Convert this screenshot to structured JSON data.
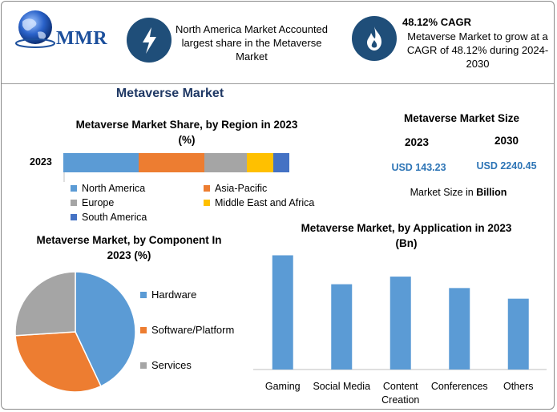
{
  "colors": {
    "blue": "#5b9bd5",
    "orange": "#ed7d31",
    "gray": "#a5a5a5",
    "yellow": "#ffc000",
    "darkblue": "#4472c4",
    "navy": "#1f4e79",
    "value_blue": "#2e75b6"
  },
  "logo": {
    "text": "MMR",
    "icon": "globe-icon"
  },
  "header": {
    "stat1": {
      "icon": "lightning-icon",
      "text": "North America Market Accounted largest share in the Metaverse Market"
    },
    "stat2": {
      "icon": "flame-icon",
      "title": "48.12% CAGR",
      "text": "Metaverse Market to grow at a CAGR of 48.12% during 2024-2030"
    }
  },
  "main_title": "Metaverse Market",
  "region_chart": {
    "title_line1": "Metaverse Market Share, by Region in 2023",
    "title_line2": "(%)",
    "row_label": "2023",
    "segments": [
      {
        "name": "North America",
        "value": 32,
        "color": "#5b9bd5"
      },
      {
        "name": "Asia-Pacific",
        "value": 28,
        "color": "#ed7d31"
      },
      {
        "name": "Europe",
        "value": 18,
        "color": "#a5a5a5"
      },
      {
        "name": "Middle East and Africa",
        "value": 11,
        "color": "#ffc000"
      },
      {
        "name": "South America",
        "value": 7,
        "color": "#4472c4"
      }
    ]
  },
  "market_size": {
    "title": "Metaverse Market Size",
    "year1": "2023",
    "year2": "2030",
    "value1": "USD 143.23",
    "value2": "USD 2240.45",
    "unit_prefix": "Market Size in ",
    "unit_bold": "Billion"
  },
  "chart_data": [
    {
      "type": "pie",
      "title": "Metaverse Market, by Component In 2023 (%)",
      "labels": [
        "Hardware",
        "Software/Platform",
        "Services"
      ],
      "values": [
        43,
        31,
        26
      ],
      "colors": [
        "#5b9bd5",
        "#ed7d31",
        "#a5a5a5"
      ],
      "legend": "right"
    },
    {
      "type": "bar",
      "title": "Metaverse Market, by Application in 2023 (Bn)",
      "categories": [
        "Gaming",
        "Social Media",
        "Content Creation",
        "Conferences",
        "Others"
      ],
      "values": [
        150,
        112,
        122,
        107,
        93
      ],
      "color": "#5b9bd5",
      "ylim": [
        0,
        160
      ],
      "grid": false
    }
  ],
  "component_chart": {
    "title_line1": "Metaverse Market, by Component In",
    "title_line2": "2023 (%)"
  },
  "application_chart": {
    "title_line1": "Metaverse Market, by Application in 2023",
    "title_line2": "(Bn)",
    "cat_lines": [
      [
        "Gaming"
      ],
      [
        "Social Media"
      ],
      [
        "Content",
        "Creation"
      ],
      [
        "Conferences"
      ],
      [
        "Others"
      ]
    ]
  }
}
